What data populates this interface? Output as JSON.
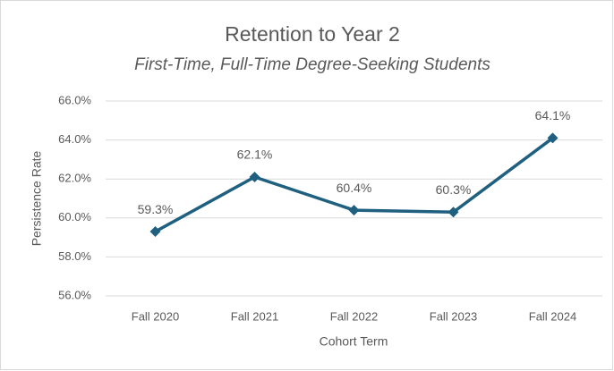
{
  "chart_data": {
    "type": "line",
    "title": "Retention to Year 2",
    "subtitle": "First-Time, Full-Time Degree-Seeking Students",
    "x_label": "Cohort Term",
    "y_label": "Persistence Rate",
    "categories": [
      "Fall 2020",
      "Fall 2021",
      "Fall 2022",
      "Fall 2023",
      "Fall 2024"
    ],
    "series": [
      {
        "name": "Persistence Rate",
        "color": "#1f5f80",
        "values": [
          59.3,
          62.1,
          60.4,
          60.3,
          64.1
        ],
        "value_labels": [
          "59.3%",
          "62.1%",
          "60.4%",
          "60.3%",
          "64.1%"
        ]
      }
    ],
    "ylim": [
      56,
      66
    ],
    "yticks": [
      {
        "value": 56,
        "label": "56.0%"
      },
      {
        "value": 58,
        "label": "58.0%"
      },
      {
        "value": 60,
        "label": "60.0%"
      },
      {
        "value": 62,
        "label": "62.0%"
      },
      {
        "value": 64,
        "label": "64.0%"
      },
      {
        "value": 66,
        "label": "66.0%"
      }
    ],
    "grid": true
  }
}
